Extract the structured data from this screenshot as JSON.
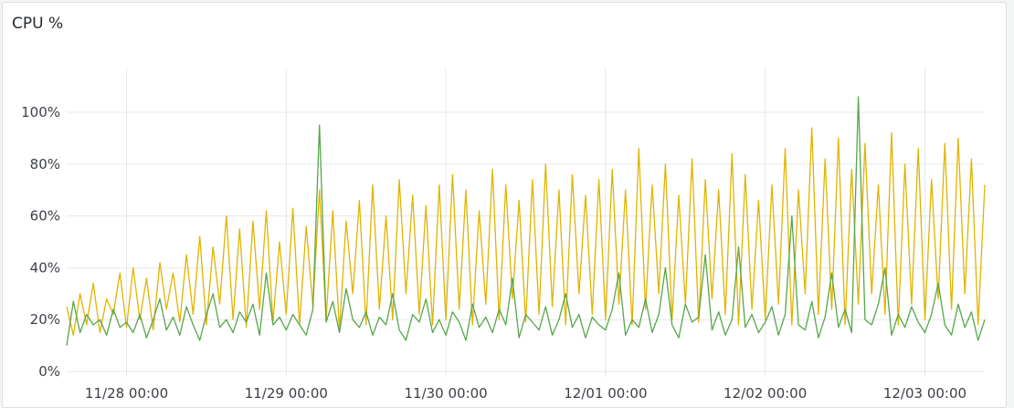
{
  "panel": {
    "title": "CPU %"
  },
  "chart_data": {
    "type": "line",
    "title": "CPU %",
    "xlim": [
      "11/27 15:00",
      "12/03 09:00"
    ],
    "ylim": [
      0,
      110
    ],
    "grid": true,
    "legend": "none",
    "x_ticks": [
      "11/28 00:00",
      "11/29 00:00",
      "11/30 00:00",
      "12/01 00:00",
      "12/02 00:00",
      "12/03 00:00"
    ],
    "y_ticks": [
      0,
      20,
      40,
      60,
      80,
      100
    ],
    "y_tick_labels": [
      "0%",
      "20%",
      "40%",
      "60%",
      "80%",
      "100%"
    ],
    "x": [
      "11/27 15:00",
      "11/27 16:00",
      "11/27 17:00",
      "11/27 18:00",
      "11/27 19:00",
      "11/27 20:00",
      "11/27 21:00",
      "11/27 22:00",
      "11/27 23:00",
      "11/28 00:00",
      "11/28 01:00",
      "11/28 02:00",
      "11/28 03:00",
      "11/28 04:00",
      "11/28 05:00",
      "11/28 06:00",
      "11/28 07:00",
      "11/28 08:00",
      "11/28 09:00",
      "11/28 10:00",
      "11/28 11:00",
      "11/28 12:00",
      "11/28 13:00",
      "11/28 14:00",
      "11/28 15:00",
      "11/28 16:00",
      "11/28 17:00",
      "11/28 18:00",
      "11/28 19:00",
      "11/28 20:00",
      "11/28 21:00",
      "11/28 22:00",
      "11/28 23:00",
      "11/29 00:00",
      "11/29 01:00",
      "11/29 02:00",
      "11/29 03:00",
      "11/29 04:00",
      "11/29 05:00",
      "11/29 06:00",
      "11/29 07:00",
      "11/29 08:00",
      "11/29 09:00",
      "11/29 10:00",
      "11/29 11:00",
      "11/29 12:00",
      "11/29 13:00",
      "11/29 14:00",
      "11/29 15:00",
      "11/29 16:00",
      "11/29 17:00",
      "11/29 18:00",
      "11/29 19:00",
      "11/29 20:00",
      "11/29 21:00",
      "11/29 22:00",
      "11/29 23:00",
      "11/30 00:00",
      "11/30 01:00",
      "11/30 02:00",
      "11/30 03:00",
      "11/30 04:00",
      "11/30 05:00",
      "11/30 06:00",
      "11/30 07:00",
      "11/30 08:00",
      "11/30 09:00",
      "11/30 10:00",
      "11/30 11:00",
      "11/30 12:00",
      "11/30 13:00",
      "11/30 14:00",
      "11/30 15:00",
      "11/30 16:00",
      "11/30 17:00",
      "11/30 18:00",
      "11/30 19:00",
      "11/30 20:00",
      "11/30 21:00",
      "11/30 22:00",
      "11/30 23:00",
      "12/01 00:00",
      "12/01 01:00",
      "12/01 02:00",
      "12/01 03:00",
      "12/01 04:00",
      "12/01 05:00",
      "12/01 06:00",
      "12/01 07:00",
      "12/01 08:00",
      "12/01 09:00",
      "12/01 10:00",
      "12/01 11:00",
      "12/01 12:00",
      "12/01 13:00",
      "12/01 14:00",
      "12/01 15:00",
      "12/01 16:00",
      "12/01 17:00",
      "12/01 18:00",
      "12/01 19:00",
      "12/01 20:00",
      "12/01 21:00",
      "12/01 22:00",
      "12/01 23:00",
      "12/02 00:00",
      "12/02 01:00",
      "12/02 02:00",
      "12/02 03:00",
      "12/02 04:00",
      "12/02 05:00",
      "12/02 06:00",
      "12/02 07:00",
      "12/02 08:00",
      "12/02 09:00",
      "12/02 10:00",
      "12/02 11:00",
      "12/02 12:00",
      "12/02 13:00",
      "12/02 14:00",
      "12/02 15:00",
      "12/02 16:00",
      "12/02 17:00",
      "12/02 18:00",
      "12/02 19:00",
      "12/02 20:00",
      "12/02 21:00",
      "12/02 22:00",
      "12/02 23:00",
      "12/03 00:00",
      "12/03 01:00",
      "12/03 02:00",
      "12/03 03:00",
      "12/03 04:00",
      "12/03 05:00",
      "12/03 06:00",
      "12/03 07:00",
      "12/03 08:00",
      "12/03 09:00"
    ],
    "series": [
      {
        "color": "#E0B400",
        "values": [
          25,
          14,
          30,
          18,
          34,
          15,
          28,
          22,
          38,
          17,
          40,
          20,
          36,
          16,
          42,
          24,
          38,
          19,
          45,
          22,
          52,
          18,
          48,
          26,
          60,
          20,
          55,
          17,
          58,
          24,
          62,
          19,
          50,
          22,
          63,
          18,
          56,
          25,
          70,
          20,
          62,
          16,
          58,
          30,
          66,
          18,
          72,
          24,
          60,
          20,
          74,
          30,
          68,
          22,
          64,
          18,
          72,
          20,
          76,
          24,
          70,
          18,
          62,
          26,
          78,
          20,
          72,
          28,
          66,
          19,
          74,
          22,
          80,
          25,
          70,
          18,
          76,
          30,
          68,
          22,
          74,
          20,
          78,
          26,
          70,
          18,
          86,
          24,
          72,
          30,
          80,
          20,
          68,
          26,
          82,
          19,
          74,
          28,
          70,
          22,
          84,
          18,
          76,
          24,
          66,
          20,
          72,
          26,
          86,
          18,
          70,
          30,
          94,
          22,
          82,
          24,
          90,
          18,
          78,
          26,
          88,
          30,
          72,
          22,
          92,
          18,
          80,
          26,
          86,
          20,
          74,
          28,
          88,
          24,
          90,
          30,
          82,
          18,
          72
        ]
      },
      {
        "color": "#56A64B",
        "values": [
          10,
          27,
          15,
          22,
          18,
          20,
          14,
          24,
          17,
          19,
          15,
          22,
          13,
          20,
          28,
          16,
          21,
          14,
          25,
          18,
          12,
          22,
          30,
          17,
          20,
          15,
          23,
          19,
          26,
          14,
          38,
          18,
          21,
          16,
          22,
          18,
          14,
          24,
          95,
          19,
          27,
          15,
          32,
          20,
          17,
          23,
          14,
          21,
          18,
          30,
          16,
          12,
          22,
          19,
          28,
          15,
          20,
          14,
          23,
          19,
          12,
          26,
          17,
          21,
          15,
          24,
          18,
          36,
          13,
          22,
          19,
          16,
          25,
          14,
          20,
          30,
          17,
          22,
          13,
          21,
          18,
          16,
          24,
          38,
          14,
          20,
          17,
          28,
          15,
          22,
          40,
          18,
          13,
          26,
          19,
          21,
          45,
          16,
          23,
          14,
          20,
          48,
          17,
          22,
          15,
          19,
          25,
          14,
          22,
          60,
          18,
          16,
          27,
          13,
          21,
          38,
          17,
          24,
          15,
          106,
          20,
          18,
          26,
          40,
          14,
          22,
          17,
          25,
          19,
          15,
          22,
          34,
          18,
          14,
          26,
          17,
          23,
          12,
          20
        ]
      }
    ]
  }
}
